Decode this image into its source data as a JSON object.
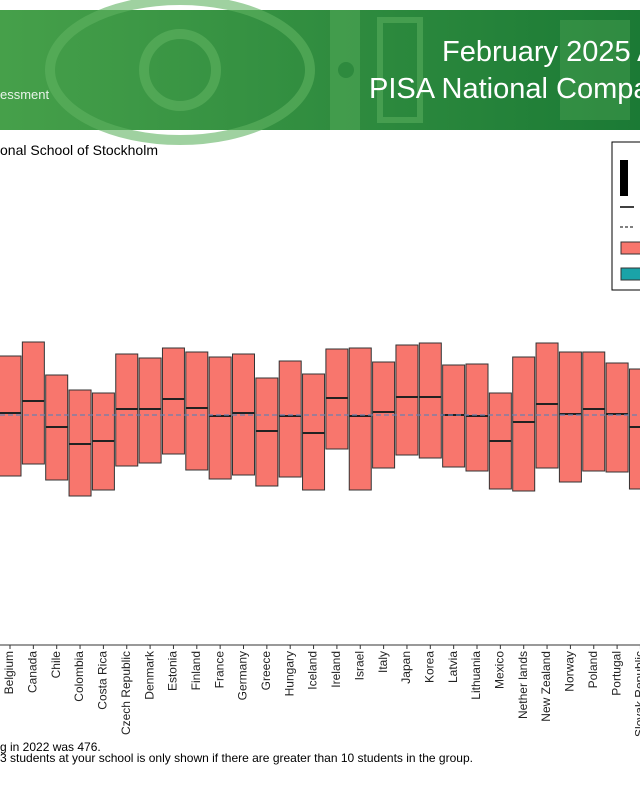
{
  "header": {
    "title_line1": "February 2025 A",
    "title_line2": "PISA National Compa",
    "tagline": "essment"
  },
  "chart_data": {
    "type": "box",
    "subtitle": "onal School of Stockholm",
    "categories": [
      "Belgium",
      "Canada",
      "Chile",
      "Colombia",
      "Costa Rica",
      "Czech Republic",
      "Denmark",
      "Estonia",
      "Finland",
      "France",
      "Germany",
      "Greece",
      "Hungary",
      "Iceland",
      "Ireland",
      "Israel",
      "Italy",
      "Japan",
      "Korea",
      "Latvia",
      "Lithuania",
      "Mexico",
      "Nether lands",
      "New Zealand",
      "Norway",
      "Poland",
      "Portugal",
      "Slovak Republic"
    ],
    "q3": [
      535,
      549,
      516,
      501,
      498,
      537,
      533,
      543,
      539,
      534,
      537,
      513,
      530,
      517,
      542,
      543,
      529,
      546,
      548,
      526,
      527,
      498,
      534,
      548,
      539,
      539,
      528,
      522
    ],
    "median": [
      478,
      490,
      464,
      447,
      450,
      482,
      482,
      492,
      483,
      475,
      478,
      460,
      475,
      458,
      493,
      475,
      479,
      494,
      494,
      476,
      475,
      450,
      469,
      487,
      477,
      482,
      477,
      464
    ],
    "q1": [
      415,
      427,
      411,
      395,
      401,
      425,
      428,
      437,
      421,
      412,
      416,
      405,
      414,
      401,
      442,
      401,
      423,
      436,
      433,
      424,
      420,
      402,
      400,
      423,
      409,
      420,
      419,
      402
    ],
    "color": "#f8766d",
    "reference_line": 476,
    "ylim": [
      246,
      751
    ],
    "footnotes": [
      "g in 2022 was 476.",
      "3 students at your school is only shown if there are greater than 10 students in the group."
    ]
  }
}
